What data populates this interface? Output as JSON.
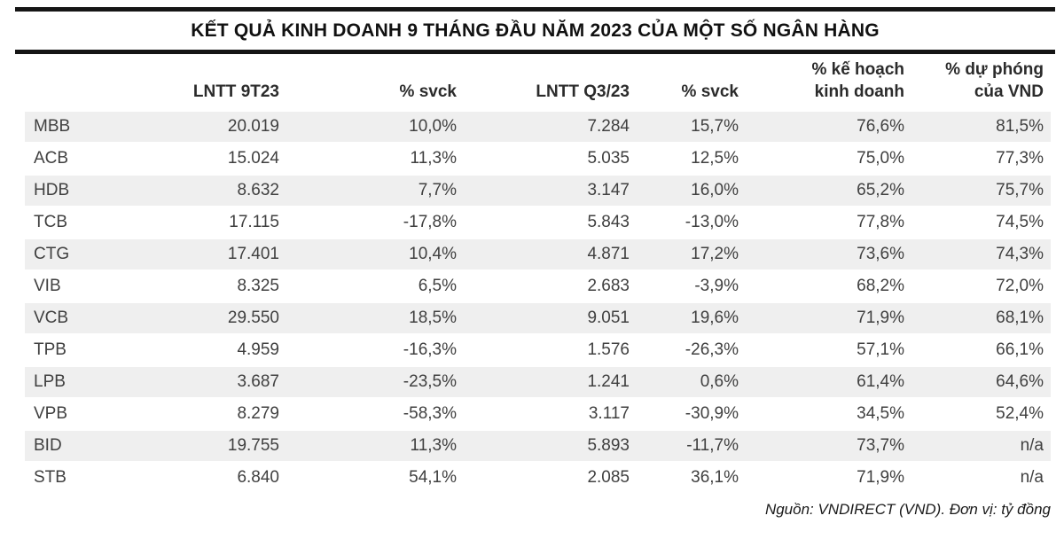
{
  "title": "KẾT QUẢ KINH DOANH 9 THÁNG ĐẦU NĂM 2023 CỦA MỘT SỐ NGÂN HÀNG",
  "source_note": "Nguồn: VNDIRECT (VND). Đơn vị: tỷ đồng",
  "colors": {
    "rule": "#151515",
    "row_stripe": "#efefef",
    "header_text": "#2b2b2b",
    "body_text": "#404040"
  },
  "chart_data": {
    "type": "table",
    "title": "KẾT QUẢ KINH DOANH 9 THÁNG ĐẦU NĂM 2023 CỦA MỘT SỐ NGÂN HÀNG",
    "unit": "tỷ đồng",
    "source": "VNDIRECT (VND)",
    "headers": [
      {
        "line1": "",
        "line2": ""
      },
      {
        "line1": "",
        "line2": "LNTT 9T23"
      },
      {
        "line1": "",
        "line2": "% svck"
      },
      {
        "line1": "",
        "line2": "LNTT Q3/23"
      },
      {
        "line1": "",
        "line2": "% svck"
      },
      {
        "line1": "% kế hoạch",
        "line2": "kinh doanh"
      },
      {
        "line1": "% dự phóng",
        "line2": "của VND"
      }
    ],
    "rows": [
      [
        "MBB",
        "20.019",
        "10,0%",
        "7.284",
        "15,7%",
        "76,6%",
        "81,5%"
      ],
      [
        "ACB",
        "15.024",
        "11,3%",
        "5.035",
        "12,5%",
        "75,0%",
        "77,3%"
      ],
      [
        "HDB",
        "8.632",
        "7,7%",
        "3.147",
        "16,0%",
        "65,2%",
        "75,7%"
      ],
      [
        "TCB",
        "17.115",
        "-17,8%",
        "5.843",
        "-13,0%",
        "77,8%",
        "74,5%"
      ],
      [
        "CTG",
        "17.401",
        "10,4%",
        "4.871",
        "17,2%",
        "73,6%",
        "74,3%"
      ],
      [
        "VIB",
        "8.325",
        "6,5%",
        "2.683",
        "-3,9%",
        "68,2%",
        "72,0%"
      ],
      [
        "VCB",
        "29.550",
        "18,5%",
        "9.051",
        "19,6%",
        "71,9%",
        "68,1%"
      ],
      [
        "TPB",
        "4.959",
        "-16,3%",
        "1.576",
        "-26,3%",
        "57,1%",
        "66,1%"
      ],
      [
        "LPB",
        "3.687",
        "-23,5%",
        "1.241",
        "0,6%",
        "61,4%",
        "64,6%"
      ],
      [
        "VPB",
        "8.279",
        "-58,3%",
        "3.117",
        "-30,9%",
        "34,5%",
        "52,4%"
      ],
      [
        "BID",
        "19.755",
        "11,3%",
        "5.893",
        "-11,7%",
        "73,7%",
        "n/a"
      ],
      [
        "STB",
        "6.840",
        "54,1%",
        "2.085",
        "36,1%",
        "71,9%",
        "n/a"
      ]
    ]
  }
}
